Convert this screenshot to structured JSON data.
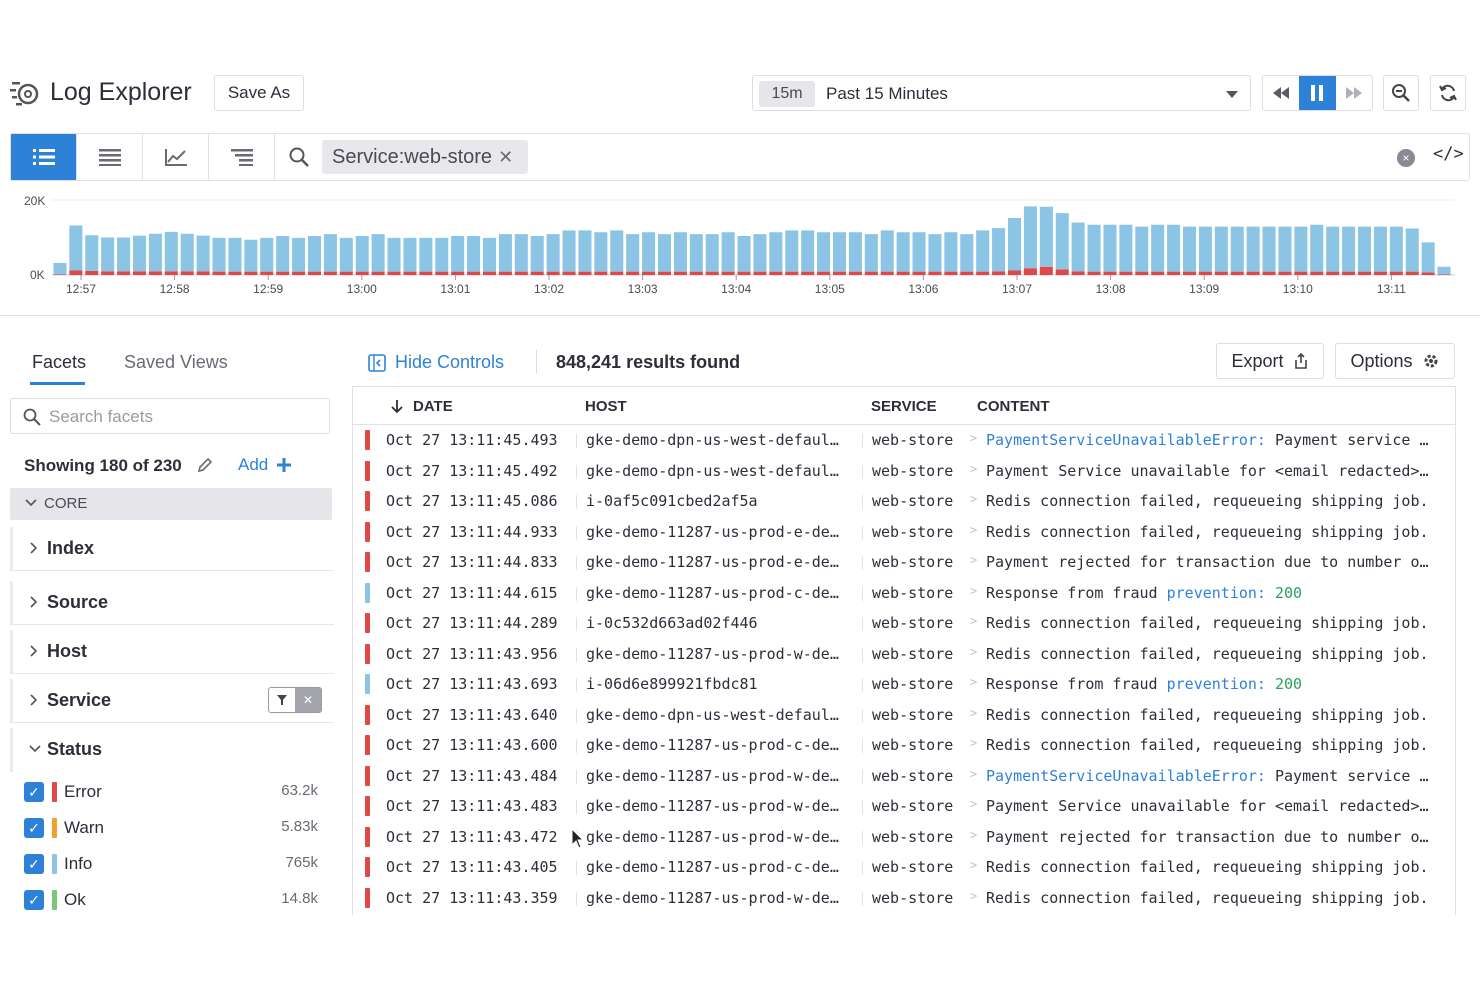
{
  "header": {
    "title": "Log Explorer",
    "save_as": "Save As",
    "time_chip": "15m",
    "time_label": "Past 15 Minutes"
  },
  "search": {
    "query": "Service:web-store",
    "clear": "×",
    "code_toggle": "</>"
  },
  "chart": {
    "ymax_label": "20K",
    "ymin_label": "0K",
    "time_labels": [
      "12:57",
      "12:58",
      "12:59",
      "13:00",
      "13:01",
      "13:02",
      "13:03",
      "13:04",
      "13:05",
      "13:06",
      "13:07",
      "13:08",
      "13:09",
      "13:10",
      "13:11"
    ],
    "colors": {
      "info": "#8cc4e6",
      "error": "#e04848",
      "warn": "#f0b040",
      "ok": "#7ac77a"
    }
  },
  "chart_data": {
    "type": "bar",
    "title": "",
    "ylim": [
      0,
      20000
    ],
    "series": [
      {
        "name": "Info",
        "values": [
          3000,
          12000,
          9500,
          9000,
          9000,
          9500,
          10000,
          10500,
          10000,
          9500,
          9000,
          9000,
          8500,
          9000,
          9500,
          9000,
          9500,
          10000,
          9000,
          9500,
          10000,
          9000,
          9000,
          9000,
          9000,
          9500,
          9500,
          9000,
          10000,
          10000,
          9500,
          10000,
          11000,
          11000,
          10500,
          11000,
          10000,
          10500,
          10000,
          10500,
          10000,
          10000,
          10500,
          9500,
          10000,
          10500,
          11000,
          11000,
          10500,
          10500,
          10500,
          10000,
          11000,
          10500,
          10500,
          10000,
          10500,
          10000,
          11000,
          11500,
          14000,
          16500,
          16000,
          15000,
          13000,
          12500,
          12500,
          12500,
          12000,
          12500,
          12500,
          12000,
          12000,
          12000,
          12000,
          12000,
          12000,
          12000,
          12000,
          12500,
          12000,
          12000,
          12000,
          12000,
          12000,
          11500,
          8000,
          2000
        ]
      },
      {
        "name": "Error",
        "values": [
          200,
          1200,
          1100,
          1000,
          1000,
          1000,
          1000,
          1000,
          1000,
          1000,
          900,
          900,
          900,
          900,
          900,
          900,
          900,
          900,
          900,
          900,
          900,
          900,
          900,
          900,
          900,
          900,
          900,
          900,
          900,
          900,
          900,
          900,
          900,
          900,
          900,
          900,
          900,
          900,
          900,
          900,
          900,
          900,
          900,
          900,
          900,
          900,
          900,
          900,
          900,
          900,
          900,
          900,
          900,
          900,
          900,
          900,
          900,
          900,
          900,
          1000,
          1200,
          1800,
          2200,
          1500,
          1000,
          900,
          900,
          900,
          900,
          900,
          900,
          900,
          900,
          900,
          900,
          900,
          900,
          900,
          900,
          900,
          900,
          900,
          900,
          900,
          900,
          900,
          700,
          200
        ]
      }
    ]
  },
  "sidebar": {
    "tabs": [
      "Facets",
      "Saved Views"
    ],
    "search_placeholder": "Search facets",
    "showing": "Showing 180 of 230",
    "add": "Add",
    "core": "CORE",
    "groups": [
      "Index",
      "Source",
      "Host",
      "Service",
      "Status"
    ],
    "status_items": [
      {
        "label": "Error",
        "count": "63.2k",
        "color": "#e04848"
      },
      {
        "label": "Warn",
        "count": "5.83k",
        "color": "#f0a030"
      },
      {
        "label": "Info",
        "count": "765k",
        "color": "#8cc4e6"
      },
      {
        "label": "Ok",
        "count": "14.8k",
        "color": "#7ac77a"
      }
    ]
  },
  "results": {
    "hide_controls": "Hide Controls",
    "count": "848,241 results found",
    "export": "Export",
    "options": "Options",
    "columns": [
      "DATE",
      "HOST",
      "SERVICE",
      "CONTENT"
    ],
    "rows": [
      {
        "status": "error",
        "date": "Oct 27 13:11:45.493",
        "host": "gke-demo-dpn-us-west-defaul…",
        "service": "web-store",
        "link": "PaymentServiceUnavailableError:",
        "content": " Payment service …"
      },
      {
        "status": "error",
        "date": "Oct 27 13:11:45.492",
        "host": "gke-demo-dpn-us-west-defaul…",
        "service": "web-store",
        "link": "",
        "content": "Payment Service unavailable for <email redacted>…"
      },
      {
        "status": "error",
        "date": "Oct 27 13:11:45.086",
        "host": "i-0af5c091cbed2af5a",
        "service": "web-store",
        "link": "",
        "content": "Redis connection failed, requeueing shipping job."
      },
      {
        "status": "error",
        "date": "Oct 27 13:11:44.933",
        "host": "gke-demo-11287-us-prod-e-de…",
        "service": "web-store",
        "link": "",
        "content": "Redis connection failed, requeueing shipping job."
      },
      {
        "status": "error",
        "date": "Oct 27 13:11:44.833",
        "host": "gke-demo-11287-us-prod-e-de…",
        "service": "web-store",
        "link": "",
        "content": "Payment rejected for transaction due to number o…"
      },
      {
        "status": "info",
        "date": "Oct 27 13:11:44.615",
        "host": "gke-demo-11287-us-prod-c-de…",
        "service": "web-store",
        "link": "",
        "content": "Response from fraud ",
        "tail_link": "prevention:",
        "tail_val": " 200"
      },
      {
        "status": "error",
        "date": "Oct 27 13:11:44.289",
        "host": "i-0c532d663ad02f446",
        "service": "web-store",
        "link": "",
        "content": "Redis connection failed, requeueing shipping job."
      },
      {
        "status": "error",
        "date": "Oct 27 13:11:43.956",
        "host": "gke-demo-11287-us-prod-w-de…",
        "service": "web-store",
        "link": "",
        "content": "Redis connection failed, requeueing shipping job."
      },
      {
        "status": "info",
        "date": "Oct 27 13:11:43.693",
        "host": "i-06d6e899921fbdc81",
        "service": "web-store",
        "link": "",
        "content": "Response from fraud ",
        "tail_link": "prevention:",
        "tail_val": " 200"
      },
      {
        "status": "error",
        "date": "Oct 27 13:11:43.640",
        "host": "gke-demo-dpn-us-west-defaul…",
        "service": "web-store",
        "link": "",
        "content": "Redis connection failed, requeueing shipping job."
      },
      {
        "status": "error",
        "date": "Oct 27 13:11:43.600",
        "host": "gke-demo-11287-us-prod-c-de…",
        "service": "web-store",
        "link": "",
        "content": "Redis connection failed, requeueing shipping job."
      },
      {
        "status": "error",
        "date": "Oct 27 13:11:43.484",
        "host": "gke-demo-11287-us-prod-w-de…",
        "service": "web-store",
        "link": "PaymentServiceUnavailableError:",
        "content": " Payment service …"
      },
      {
        "status": "error",
        "date": "Oct 27 13:11:43.483",
        "host": "gke-demo-11287-us-prod-w-de…",
        "service": "web-store",
        "link": "",
        "content": "Payment Service unavailable for <email redacted>…"
      },
      {
        "status": "error",
        "date": "Oct 27 13:11:43.472",
        "host": "gke-demo-11287-us-prod-w-de…",
        "service": "web-store",
        "link": "",
        "content": "Payment rejected for transaction due to number o…"
      },
      {
        "status": "error",
        "date": "Oct 27 13:11:43.405",
        "host": "gke-demo-11287-us-prod-c-de…",
        "service": "web-store",
        "link": "",
        "content": "Redis connection failed, requeueing shipping job."
      },
      {
        "status": "error",
        "date": "Oct 27 13:11:43.359",
        "host": "gke-demo-11287-us-prod-w-de…",
        "service": "web-store",
        "link": "",
        "content": "Redis connection failed, requeueing shipping job."
      }
    ]
  }
}
